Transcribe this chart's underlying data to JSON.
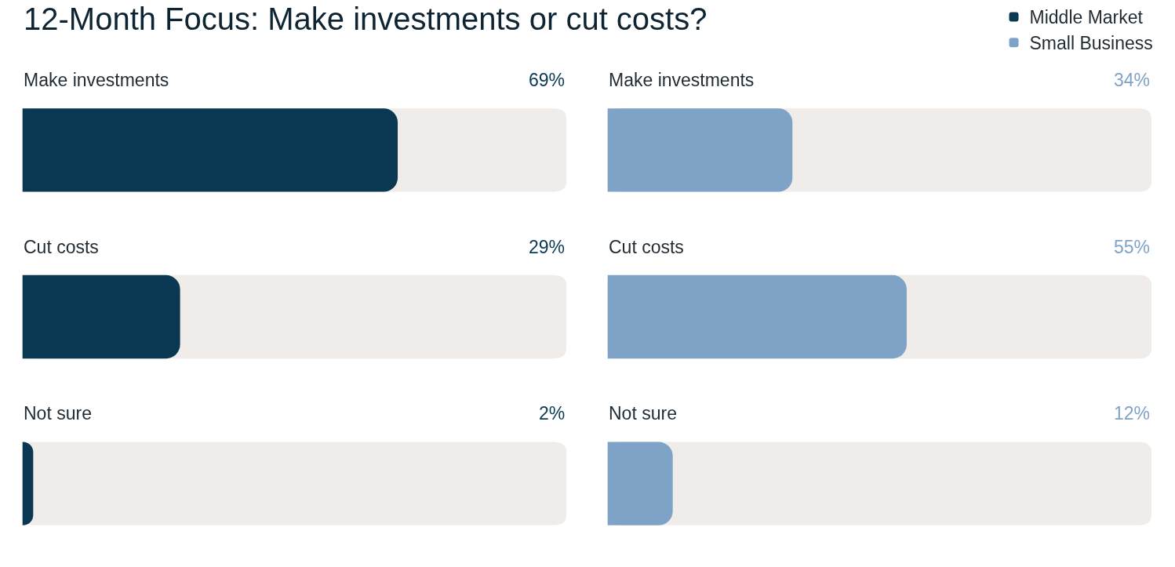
{
  "chart_data": [
    {
      "type": "bar",
      "title": "12-Month Focus: Make investments or cut costs?",
      "orientation": "horizontal",
      "categories": [
        "Make investments",
        "Cut costs",
        "Not sure"
      ],
      "series": [
        {
          "name": "Middle Market",
          "color": "#0a3853",
          "values": [
            69,
            29,
            2
          ],
          "value_labels": [
            "69%",
            "29%",
            "2%"
          ]
        }
      ],
      "xlim": [
        0,
        100
      ],
      "legend": "top right"
    },
    {
      "type": "bar",
      "orientation": "horizontal",
      "categories": [
        "Make investments",
        "Cut costs",
        "Not sure"
      ],
      "series": [
        {
          "name": "Small Business",
          "color": "#7fa3c6",
          "values": [
            34,
            55,
            12
          ],
          "value_labels": [
            "34%",
            "55%",
            "12%"
          ]
        }
      ],
      "xlim": [
        0,
        100
      ],
      "legend": "top right"
    }
  ]
}
